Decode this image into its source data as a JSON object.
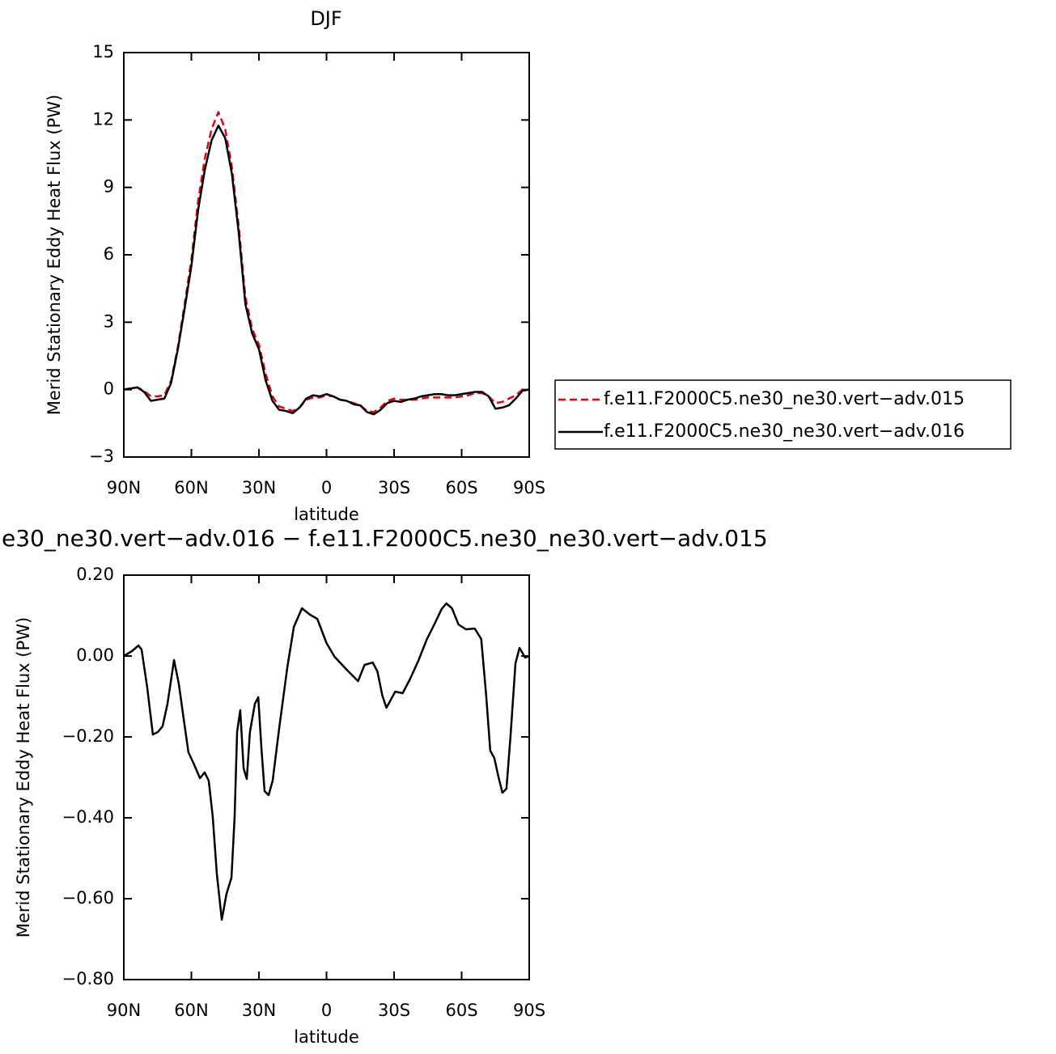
{
  "chart_data": [
    {
      "type": "line",
      "title": "DJF",
      "xlabel": "latitude",
      "ylabel": "Merid Stationary Eddy Heat Flux (PW)",
      "x": [
        90,
        87,
        84,
        81,
        78,
        75,
        72,
        69,
        66,
        63,
        60,
        57,
        54,
        51,
        48,
        45,
        42,
        39,
        36,
        33,
        30,
        27,
        24,
        21,
        18,
        15,
        12,
        9,
        6,
        3,
        0,
        -3,
        -6,
        -9,
        -12,
        -15,
        -18,
        -21,
        -24,
        -27,
        -30,
        -33,
        -36,
        -39,
        -42,
        -45,
        -48,
        -51,
        -54,
        -57,
        -60,
        -63,
        -66,
        -69,
        -72,
        -75,
        -78,
        -81,
        -84,
        -87,
        -90
      ],
      "series": [
        {
          "name": "f.e11.F2000C5.ne30_ne30.vert−adv.015",
          "color": "#e8000b",
          "line_style": "dashed",
          "values": [
            0,
            0.05,
            0.1,
            -0.05,
            -0.3,
            -0.3,
            -0.25,
            0.4,
            1.9,
            3.8,
            5.8,
            8.4,
            10.3,
            11.6,
            12.35,
            11.6,
            9.9,
            7.3,
            4.1,
            2.7,
            2.0,
            0.7,
            -0.3,
            -0.75,
            -0.85,
            -0.95,
            -0.8,
            -0.45,
            -0.35,
            -0.35,
            -0.25,
            -0.3,
            -0.45,
            -0.5,
            -0.6,
            -0.7,
            -0.95,
            -1.0,
            -0.8,
            -0.5,
            -0.4,
            -0.45,
            -0.45,
            -0.45,
            -0.4,
            -0.35,
            -0.35,
            -0.35,
            -0.35,
            -0.35,
            -0.3,
            -0.25,
            -0.15,
            -0.15,
            -0.3,
            -0.6,
            -0.55,
            -0.4,
            -0.25,
            0,
            0
          ]
        },
        {
          "name": "f.e11.F2000C5.ne30_ne30.vert−adv.016",
          "color": "#000000",
          "line_style": "solid",
          "values": [
            0,
            0.05,
            0.1,
            -0.1,
            -0.5,
            -0.45,
            -0.4,
            0.3,
            1.8,
            3.6,
            5.5,
            8,
            9.8,
            11.1,
            11.75,
            11.2,
            9.6,
            7,
            3.8,
            2.5,
            1.8,
            0.4,
            -0.5,
            -0.9,
            -0.95,
            -1.05,
            -0.8,
            -0.4,
            -0.25,
            -0.3,
            -0.2,
            -0.3,
            -0.45,
            -0.5,
            -0.65,
            -0.7,
            -1.0,
            -1.1,
            -0.9,
            -0.6,
            -0.5,
            -0.55,
            -0.45,
            -0.4,
            -0.3,
            -0.25,
            -0.2,
            -0.2,
            -0.25,
            -0.25,
            -0.2,
            -0.15,
            -0.1,
            -0.1,
            -0.3,
            -0.85,
            -0.8,
            -0.7,
            -0.4,
            -0.05,
            0
          ]
        }
      ],
      "xlim": [
        90,
        -90
      ],
      "xticks": [
        {
          "value": 90,
          "label": "90N"
        },
        {
          "value": 60,
          "label": "60N"
        },
        {
          "value": 30,
          "label": "30N"
        },
        0,
        {
          "value": -30,
          "label": "30S"
        },
        {
          "value": -60,
          "label": "60S"
        },
        {
          "value": -90,
          "label": "90S"
        }
      ],
      "ylim": [
        -3,
        15
      ],
      "yticks": [
        {
          "value": -3,
          "label": "−3"
        },
        0,
        3,
        6,
        9,
        12,
        15
      ],
      "legend": "right"
    },
    {
      "type": "line",
      "title": "e30_ne30.vert−adv.016 − f.e11.F2000C5.ne30_ne30.vert−adv.015",
      "xlabel": "latitude",
      "ylabel": "Merid Stationary Eddy Heat Flux (PW)",
      "x": [
        90,
        86.4,
        83.5,
        82.1,
        79.6,
        77.1,
        74.9,
        72.8,
        70.6,
        67.7,
        65.6,
        63.1,
        61.3,
        58.8,
        56.2,
        54.1,
        52.3,
        50.5,
        48.7,
        46.5,
        44.4,
        42.2,
        40.8,
        39.7,
        38.3,
        36.8,
        35.4,
        34.0,
        31.8,
        30.3,
        28.9,
        27.5,
        25.7,
        23.9,
        21.0,
        17.4,
        14.5,
        10.9,
        9.1,
        7.3,
        4.1,
        0,
        -3.6,
        -9.0,
        -12.2,
        -14.0,
        -16.9,
        -20.5,
        -22.6,
        -24.8,
        -26.6,
        -30.5,
        -33.8,
        -37.0,
        -40.6,
        -44.6,
        -48.2,
        -51.1,
        -53.2,
        -55.7,
        -58.6,
        -61.9,
        -65.8,
        -68.7,
        -70.9,
        -72.7,
        -74.5,
        -76.3,
        -78.1,
        -79.9,
        -81.7,
        -83.9,
        -85.7,
        -88.2,
        -90
      ],
      "series": [
        {
          "color": "#000000",
          "line_style": "solid",
          "values": [
            0,
            0.012,
            0.026,
            0.016,
            -0.078,
            -0.194,
            -0.188,
            -0.174,
            -0.118,
            -0.01,
            -0.068,
            -0.168,
            -0.238,
            -0.268,
            -0.302,
            -0.288,
            -0.308,
            -0.398,
            -0.538,
            -0.652,
            -0.588,
            -0.548,
            -0.398,
            -0.188,
            -0.134,
            -0.278,
            -0.304,
            -0.188,
            -0.118,
            -0.102,
            -0.228,
            -0.334,
            -0.344,
            -0.308,
            -0.178,
            -0.028,
            0.072,
            0.118,
            0.11,
            0.102,
            0.092,
            0.032,
            -0.002,
            -0.034,
            -0.052,
            -0.062,
            -0.022,
            -0.016,
            -0.038,
            -0.098,
            -0.128,
            -0.088,
            -0.092,
            -0.058,
            -0.014,
            0.042,
            0.082,
            0.116,
            0.13,
            0.118,
            0.078,
            0.066,
            0.068,
            0.042,
            -0.098,
            -0.234,
            -0.252,
            -0.298,
            -0.338,
            -0.328,
            -0.198,
            -0.018,
            0.02,
            -0.004,
            0
          ]
        }
      ],
      "xlim": [
        90,
        -90
      ],
      "xticks": [
        {
          "value": 90,
          "label": "90N"
        },
        {
          "value": 60,
          "label": "60N"
        },
        {
          "value": 30,
          "label": "30N"
        },
        0,
        {
          "value": -30,
          "label": "30S"
        },
        {
          "value": -60,
          "label": "60S"
        },
        {
          "value": -90,
          "label": "90S"
        }
      ],
      "ylim": [
        -0.8,
        0.2
      ],
      "yticks": [
        {
          "value": -0.8,
          "label": "−0.80"
        },
        {
          "value": -0.6,
          "label": "−0.60"
        },
        {
          "value": -0.4,
          "label": "−0.40"
        },
        {
          "value": -0.2,
          "label": "−0.20"
        },
        {
          "value": 0,
          "label": "0.00"
        },
        {
          "value": 0.2,
          "label": "0.20"
        }
      ]
    }
  ]
}
